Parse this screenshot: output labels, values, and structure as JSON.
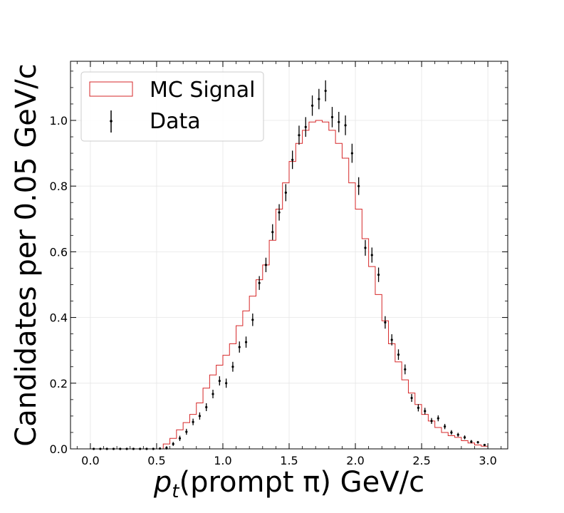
{
  "chart_data": {
    "type": "histogram",
    "xlabel_prefix": "p",
    "xlabel_sub": "t",
    "xlabel_rest": "(prompt π) GeV/c",
    "ylabel": "Candidates per 0.05 GeV/c",
    "xlim": [
      -0.15,
      3.15
    ],
    "ylim": [
      0.0,
      1.18
    ],
    "x_ticks": [
      "0.0",
      "0.5",
      "1.0",
      "1.5",
      "2.0",
      "2.5",
      "3.0"
    ],
    "y_ticks": [
      "0.0",
      "0.2",
      "0.4",
      "0.6",
      "0.8",
      "1.0"
    ],
    "grid": true,
    "legend": {
      "location": "top-left",
      "entries": [
        {
          "label": "MC Signal",
          "style": "step",
          "color": "#d62728"
        },
        {
          "label": "Data",
          "style": "errorbar",
          "color": "#000000"
        }
      ]
    },
    "series": [
      {
        "name": "MC Signal",
        "kind": "step",
        "color": "#d62728",
        "bin_width": 0.05,
        "bin_edges_start": 0.0,
        "values": [
          0,
          0,
          0,
          0,
          0,
          0,
          0,
          0,
          0,
          0,
          0,
          0.015,
          0.032,
          0.058,
          0.08,
          0.105,
          0.14,
          0.185,
          0.225,
          0.255,
          0.285,
          0.32,
          0.375,
          0.42,
          0.465,
          0.515,
          0.56,
          0.635,
          0.73,
          0.81,
          0.875,
          0.93,
          0.97,
          0.995,
          1.0,
          0.995,
          0.97,
          0.93,
          0.885,
          0.81,
          0.73,
          0.64,
          0.555,
          0.47,
          0.39,
          0.32,
          0.265,
          0.21,
          0.17,
          0.135,
          0.105,
          0.085,
          0.065,
          0.05,
          0.04,
          0.035,
          0.025,
          0.018,
          0.012,
          0.008
        ]
      },
      {
        "name": "Data",
        "kind": "errorbar",
        "color": "#000000",
        "x": [
          0.025,
          0.075,
          0.125,
          0.175,
          0.225,
          0.275,
          0.325,
          0.375,
          0.425,
          0.475,
          0.525,
          0.575,
          0.625,
          0.675,
          0.725,
          0.775,
          0.825,
          0.875,
          0.925,
          0.975,
          1.025,
          1.075,
          1.125,
          1.175,
          1.225,
          1.275,
          1.325,
          1.375,
          1.425,
          1.475,
          1.525,
          1.575,
          1.625,
          1.675,
          1.725,
          1.775,
          1.825,
          1.875,
          1.925,
          1.975,
          2.025,
          2.075,
          2.125,
          2.175,
          2.225,
          2.275,
          2.325,
          2.375,
          2.425,
          2.475,
          2.525,
          2.575,
          2.625,
          2.675,
          2.725,
          2.775,
          2.825,
          2.875,
          2.925,
          2.975
        ],
        "y": [
          0.0,
          0.0,
          0.0,
          0.0,
          0.0,
          0.0,
          0.0,
          0.0,
          0.0,
          0.0,
          0.001,
          0.003,
          0.015,
          0.032,
          0.052,
          0.082,
          0.1,
          0.127,
          0.167,
          0.207,
          0.2,
          0.25,
          0.31,
          0.325,
          0.393,
          0.505,
          0.56,
          0.66,
          0.72,
          0.78,
          0.88,
          0.955,
          0.98,
          1.045,
          1.065,
          1.09,
          1.01,
          0.995,
          0.985,
          0.9,
          0.8,
          0.612,
          0.59,
          0.53,
          0.385,
          0.332,
          0.287,
          0.242,
          0.155,
          0.125,
          0.115,
          0.085,
          0.093,
          0.068,
          0.05,
          0.043,
          0.035,
          0.022,
          0.02,
          0.012
        ],
        "yerr": [
          0.002,
          0.002,
          0.002,
          0.002,
          0.002,
          0.002,
          0.002,
          0.002,
          0.002,
          0.002,
          0.003,
          0.005,
          0.006,
          0.008,
          0.009,
          0.01,
          0.011,
          0.012,
          0.013,
          0.014,
          0.014,
          0.015,
          0.017,
          0.017,
          0.019,
          0.021,
          0.022,
          0.024,
          0.025,
          0.026,
          0.028,
          0.029,
          0.03,
          0.031,
          0.031,
          0.032,
          0.031,
          0.031,
          0.03,
          0.029,
          0.027,
          0.024,
          0.023,
          0.022,
          0.019,
          0.017,
          0.016,
          0.015,
          0.012,
          0.011,
          0.01,
          0.009,
          0.009,
          0.008,
          0.007,
          0.006,
          0.006,
          0.005,
          0.004,
          0.003
        ]
      }
    ]
  }
}
